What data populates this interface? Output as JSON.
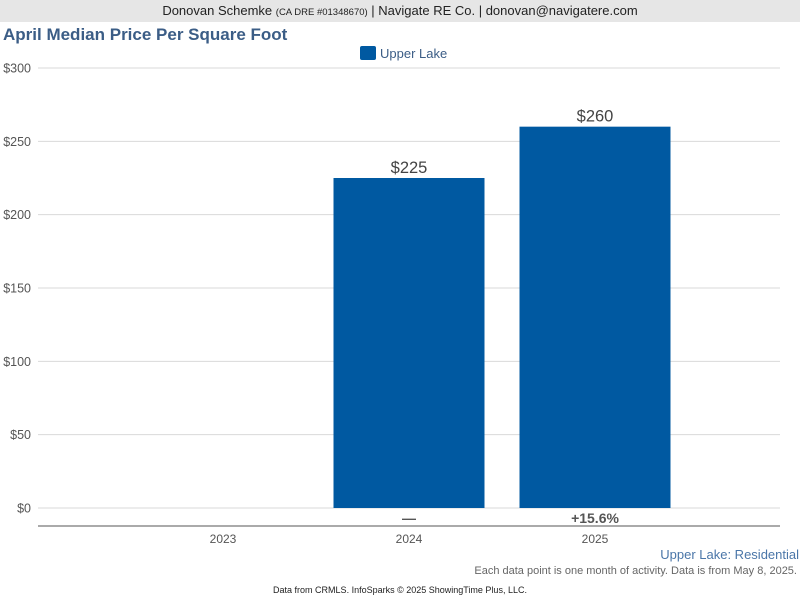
{
  "header": {
    "agent_name": "Donovan Schemke",
    "license": "(CA DRE #01348670)",
    "company_contact": "| Navigate RE Co. | donovan@navigatere.com"
  },
  "chart_data": {
    "type": "bar",
    "title": "April Median Price Per Square Foot",
    "categories": [
      "2023",
      "2024",
      "2025"
    ],
    "series": [
      {
        "name": "Upper Lake",
        "values": [
          null,
          225,
          260
        ],
        "color": "#0059a1"
      }
    ],
    "data_labels": [
      "",
      "$225",
      "$260"
    ],
    "change_labels": [
      "",
      "—",
      "+15.6%"
    ],
    "yticks": [
      "$0",
      "$50",
      "$100",
      "$150",
      "$200",
      "$250",
      "$300"
    ],
    "ylim": [
      0,
      300
    ],
    "ystep": 50,
    "grid": true,
    "legend_position": "top-center"
  },
  "footer": {
    "series_label": "Upper Lake: Residential",
    "note": "Each data point is one month of activity. Data is from May 8, 2025.",
    "credit": "Data from CRMLS. InfoSparks © 2025 ShowingTime Plus, LLC."
  }
}
